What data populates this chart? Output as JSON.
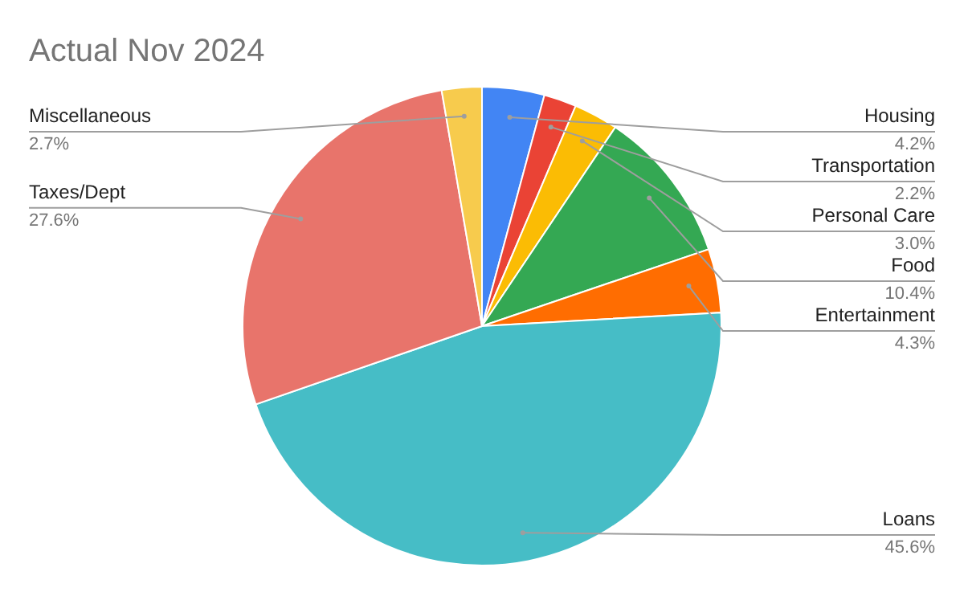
{
  "chart_data": {
    "type": "pie",
    "title": "Actual Nov 2024",
    "categories": [
      "Housing",
      "Transportation",
      "Personal Care",
      "Food",
      "Entertainment",
      "Loans",
      "Taxes/Dept",
      "Miscellaneous"
    ],
    "values": [
      4.2,
      2.2,
      3.0,
      10.4,
      4.3,
      45.6,
      27.6,
      2.7
    ],
    "colors": [
      "#4285f4",
      "#ea4335",
      "#fbbc04",
      "#34a853",
      "#ff6d01",
      "#46bdc6",
      "#e8746b",
      "#f7cb4d"
    ],
    "value_labels": [
      "4.2%",
      "2.2%",
      "3.0%",
      "10.4%",
      "4.3%",
      "45.6%",
      "27.6%",
      "2.7%"
    ]
  }
}
